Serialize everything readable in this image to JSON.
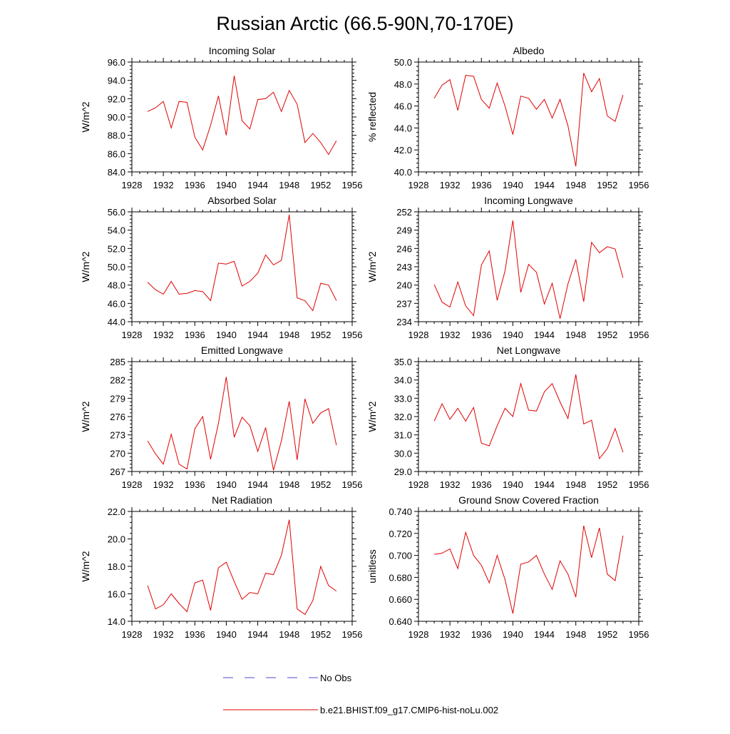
{
  "title": "Russian Arctic (66.5-90N,70-170E)",
  "legend": {
    "obs_label": "No Obs",
    "model_label": "b.e21.BHIST.f09_g17.CMIP6-hist-noLu.002",
    "obs_color": "#4a4ad0",
    "model_color": "#e00000"
  },
  "chart_data": [
    {
      "type": "line",
      "title": "Incoming Solar",
      "ylabel": "W/m^2",
      "xlim": [
        1928,
        1956
      ],
      "ylim": [
        84.0,
        96.0
      ],
      "xticks": [
        1928,
        1932,
        1936,
        1940,
        1944,
        1948,
        1952,
        1956
      ],
      "xtick_labels": [
        "1928",
        "1932",
        "1936",
        "1940",
        "1944",
        "1948",
        "1952",
        "1956"
      ],
      "yticks": [
        84,
        86,
        88,
        90,
        92,
        94,
        96
      ],
      "ytick_labels": [
        "84.0",
        "86.0",
        "88.0",
        "90.0",
        "92.0",
        "94.0",
        "96.0"
      ],
      "x": [
        1930,
        1931,
        1932,
        1933,
        1934,
        1935,
        1936,
        1937,
        1938,
        1939,
        1940,
        1941,
        1942,
        1943,
        1944,
        1945,
        1946,
        1947,
        1948,
        1949,
        1950,
        1951,
        1952,
        1953,
        1954
      ],
      "series": [
        {
          "name": "b.e21.BHIST.f09_g17.CMIP6-hist-noLu.002",
          "color": "#e00000",
          "values": [
            90.6,
            91.0,
            91.7,
            88.8,
            91.7,
            91.6,
            87.8,
            86.4,
            89.1,
            92.3,
            88.0,
            94.5,
            89.6,
            88.7,
            91.9,
            92.0,
            92.7,
            90.6,
            92.9,
            91.4,
            87.2,
            88.2,
            87.2,
            85.9,
            87.4
          ]
        }
      ]
    },
    {
      "type": "line",
      "title": "Albedo",
      "ylabel": "% reflected",
      "xlim": [
        1928,
        1956
      ],
      "ylim": [
        40.0,
        50.0
      ],
      "xticks": [
        1928,
        1932,
        1936,
        1940,
        1944,
        1948,
        1952,
        1956
      ],
      "xtick_labels": [
        "1928",
        "1932",
        "1936",
        "1940",
        "1944",
        "1948",
        "1952",
        "1956"
      ],
      "yticks": [
        40,
        42,
        44,
        46,
        48,
        50
      ],
      "ytick_labels": [
        "40.0",
        "42.0",
        "44.0",
        "46.0",
        "48.0",
        "50.0"
      ],
      "x": [
        1930,
        1931,
        1932,
        1933,
        1934,
        1935,
        1936,
        1937,
        1938,
        1939,
        1940,
        1941,
        1942,
        1943,
        1944,
        1945,
        1946,
        1947,
        1948,
        1949,
        1950,
        1951,
        1952,
        1953,
        1954
      ],
      "series": [
        {
          "name": "b.e21.BHIST.f09_g17.CMIP6-hist-noLu.002",
          "color": "#e00000",
          "values": [
            46.7,
            47.9,
            48.4,
            45.6,
            48.8,
            48.7,
            46.6,
            45.8,
            48.1,
            46.0,
            43.4,
            46.9,
            46.7,
            45.7,
            46.6,
            44.9,
            46.6,
            44.2,
            40.5,
            49.0,
            47.3,
            48.5,
            45.1,
            44.6,
            47.0
          ]
        }
      ]
    },
    {
      "type": "line",
      "title": "Absorbed Solar",
      "ylabel": "W/m^2",
      "xlim": [
        1928,
        1956
      ],
      "ylim": [
        44.0,
        56.0
      ],
      "xticks": [
        1928,
        1932,
        1936,
        1940,
        1944,
        1948,
        1952,
        1956
      ],
      "xtick_labels": [
        "1928",
        "1932",
        "1936",
        "1940",
        "1944",
        "1948",
        "1952",
        "1956"
      ],
      "yticks": [
        44,
        46,
        48,
        50,
        52,
        54,
        56
      ],
      "ytick_labels": [
        "44.0",
        "46.0",
        "48.0",
        "50.0",
        "52.0",
        "54.0",
        "56.0"
      ],
      "x": [
        1930,
        1931,
        1932,
        1933,
        1934,
        1935,
        1936,
        1937,
        1938,
        1939,
        1940,
        1941,
        1942,
        1943,
        1944,
        1945,
        1946,
        1947,
        1948,
        1949,
        1950,
        1951,
        1952,
        1953,
        1954
      ],
      "series": [
        {
          "name": "b.e21.BHIST.f09_g17.CMIP6-hist-noLu.002",
          "color": "#e00000",
          "values": [
            48.3,
            47.5,
            47.0,
            48.4,
            47.0,
            47.1,
            47.4,
            47.3,
            46.3,
            50.4,
            50.3,
            50.6,
            47.9,
            48.4,
            49.3,
            51.3,
            50.2,
            50.7,
            55.7,
            46.6,
            46.3,
            45.2,
            48.2,
            48.0,
            46.3
          ]
        }
      ]
    },
    {
      "type": "line",
      "title": "Incoming Longwave",
      "ylabel": "W/m^2",
      "xlim": [
        1928,
        1956
      ],
      "ylim": [
        234,
        252
      ],
      "xticks": [
        1928,
        1932,
        1936,
        1940,
        1944,
        1948,
        1952,
        1956
      ],
      "xtick_labels": [
        "1928",
        "1932",
        "1936",
        "1940",
        "1944",
        "1948",
        "1952",
        "1956"
      ],
      "yticks": [
        234,
        237,
        240,
        243,
        246,
        249,
        252
      ],
      "ytick_labels": [
        "234",
        "237",
        "240",
        "243",
        "246",
        "249",
        "252"
      ],
      "x": [
        1930,
        1931,
        1932,
        1933,
        1934,
        1935,
        1936,
        1937,
        1938,
        1939,
        1940,
        1941,
        1942,
        1943,
        1944,
        1945,
        1946,
        1947,
        1948,
        1949,
        1950,
        1951,
        1952,
        1953,
        1954
      ],
      "series": [
        {
          "name": "b.e21.BHIST.f09_g17.CMIP6-hist-noLu.002",
          "color": "#e00000",
          "values": [
            240.1,
            237.2,
            236.4,
            240.5,
            236.6,
            235.0,
            243.3,
            245.6,
            237.5,
            242.3,
            250.6,
            238.8,
            243.4,
            242.1,
            236.9,
            240.3,
            234.5,
            240.2,
            244.2,
            237.3,
            247.0,
            245.3,
            246.3,
            245.9,
            241.2
          ]
        }
      ]
    },
    {
      "type": "line",
      "title": "Emitted Longwave",
      "ylabel": "W/m^2",
      "xlim": [
        1928,
        1956
      ],
      "ylim": [
        267,
        285
      ],
      "xticks": [
        1928,
        1932,
        1936,
        1940,
        1944,
        1948,
        1952,
        1956
      ],
      "xtick_labels": [
        "1928",
        "1932",
        "1936",
        "1940",
        "1944",
        "1948",
        "1952",
        "1956"
      ],
      "yticks": [
        267,
        270,
        273,
        276,
        279,
        282,
        285
      ],
      "ytick_labels": [
        "267",
        "270",
        "273",
        "276",
        "279",
        "282",
        "285"
      ],
      "x": [
        1930,
        1931,
        1932,
        1933,
        1934,
        1935,
        1936,
        1937,
        1938,
        1939,
        1940,
        1941,
        1942,
        1943,
        1944,
        1945,
        1946,
        1947,
        1948,
        1949,
        1950,
        1951,
        1952,
        1953,
        1954
      ],
      "series": [
        {
          "name": "b.e21.BHIST.f09_g17.CMIP6-hist-noLu.002",
          "color": "#e00000",
          "values": [
            272.0,
            269.9,
            268.2,
            273.1,
            268.2,
            267.4,
            274.0,
            276.0,
            269.0,
            274.9,
            282.5,
            272.6,
            275.9,
            274.5,
            270.3,
            274.2,
            267.2,
            272.0,
            278.5,
            268.9,
            278.9,
            274.9,
            276.6,
            277.3,
            271.3
          ]
        }
      ]
    },
    {
      "type": "line",
      "title": "Net Longwave",
      "ylabel": "W/m^2",
      "xlim": [
        1928,
        1956
      ],
      "ylim": [
        29.0,
        35.0
      ],
      "xticks": [
        1928,
        1932,
        1936,
        1940,
        1944,
        1948,
        1952,
        1956
      ],
      "xtick_labels": [
        "1928",
        "1932",
        "1936",
        "1940",
        "1944",
        "1948",
        "1952",
        "1956"
      ],
      "yticks": [
        29,
        30,
        31,
        32,
        33,
        34,
        35
      ],
      "ytick_labels": [
        "29.0",
        "30.0",
        "31.0",
        "32.0",
        "33.0",
        "34.0",
        "35.0"
      ],
      "x": [
        1930,
        1931,
        1932,
        1933,
        1934,
        1935,
        1936,
        1937,
        1938,
        1939,
        1940,
        1941,
        1942,
        1943,
        1944,
        1945,
        1946,
        1947,
        1948,
        1949,
        1950,
        1951,
        1952,
        1953,
        1954
      ],
      "series": [
        {
          "name": "b.e21.BHIST.f09_g17.CMIP6-hist-noLu.002",
          "color": "#e00000",
          "values": [
            31.75,
            32.7,
            31.85,
            32.45,
            31.75,
            32.5,
            30.55,
            30.4,
            31.5,
            32.45,
            32.0,
            33.8,
            32.35,
            32.3,
            33.35,
            33.8,
            32.8,
            31.9,
            34.3,
            31.6,
            31.8,
            29.7,
            30.25,
            31.35,
            30.05
          ]
        }
      ]
    },
    {
      "type": "line",
      "title": "Net Radiation",
      "ylabel": "W/m^2",
      "xlim": [
        1928,
        1956
      ],
      "ylim": [
        14.0,
        22.0
      ],
      "xticks": [
        1928,
        1932,
        1936,
        1940,
        1944,
        1948,
        1952,
        1956
      ],
      "xtick_labels": [
        "1928",
        "1932",
        "1936",
        "1940",
        "1944",
        "1948",
        "1952",
        "1956"
      ],
      "yticks": [
        14,
        16,
        18,
        20,
        22
      ],
      "ytick_labels": [
        "14.0",
        "16.0",
        "18.0",
        "20.0",
        "22.0"
      ],
      "x": [
        1930,
        1931,
        1932,
        1933,
        1934,
        1935,
        1936,
        1937,
        1938,
        1939,
        1940,
        1941,
        1942,
        1943,
        1944,
        1945,
        1946,
        1947,
        1948,
        1949,
        1950,
        1951,
        1952,
        1953,
        1954
      ],
      "series": [
        {
          "name": "b.e21.BHIST.f09_g17.CMIP6-hist-noLu.002",
          "color": "#e00000",
          "values": [
            16.6,
            14.9,
            15.2,
            16.0,
            15.3,
            14.7,
            16.8,
            17.0,
            14.8,
            17.9,
            18.3,
            16.9,
            15.6,
            16.1,
            16.0,
            17.5,
            17.4,
            18.8,
            21.4,
            14.9,
            14.5,
            15.5,
            18.0,
            16.6,
            16.2
          ]
        }
      ]
    },
    {
      "type": "line",
      "title": "Ground Snow Covered Fraction",
      "ylabel": "unitless",
      "xlim": [
        1928,
        1956
      ],
      "ylim": [
        0.64,
        0.74
      ],
      "xticks": [
        1928,
        1932,
        1936,
        1940,
        1944,
        1948,
        1952,
        1956
      ],
      "xtick_labels": [
        "1928",
        "1932",
        "1936",
        "1940",
        "1944",
        "1948",
        "1952",
        "1956"
      ],
      "yticks": [
        0.64,
        0.66,
        0.68,
        0.7,
        0.72,
        0.74
      ],
      "ytick_labels": [
        "0.640",
        "0.660",
        "0.680",
        "0.700",
        "0.720",
        "0.740"
      ],
      "x": [
        1930,
        1931,
        1932,
        1933,
        1934,
        1935,
        1936,
        1937,
        1938,
        1939,
        1940,
        1941,
        1942,
        1943,
        1944,
        1945,
        1946,
        1947,
        1948,
        1949,
        1950,
        1951,
        1952,
        1953,
        1954
      ],
      "series": [
        {
          "name": "b.e21.BHIST.f09_g17.CMIP6-hist-noLu.002",
          "color": "#e00000",
          "values": [
            0.701,
            0.702,
            0.706,
            0.688,
            0.721,
            0.7,
            0.691,
            0.675,
            0.7,
            0.678,
            0.647,
            0.692,
            0.694,
            0.7,
            0.683,
            0.669,
            0.695,
            0.683,
            0.662,
            0.727,
            0.698,
            0.725,
            0.683,
            0.677,
            0.718
          ]
        }
      ]
    }
  ]
}
